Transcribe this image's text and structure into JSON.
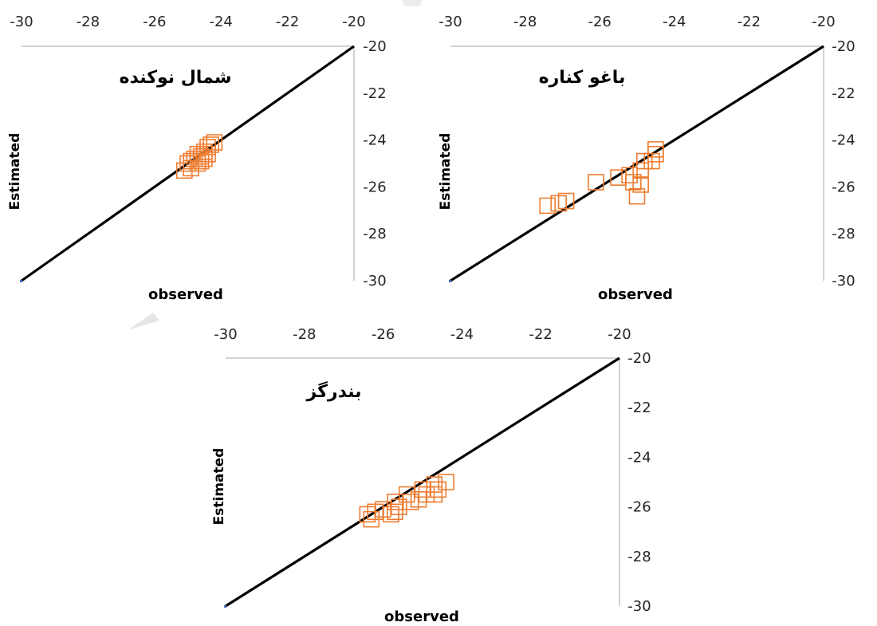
{
  "chart_data": [
    {
      "type": "scatter",
      "title": "شمال نوکنده",
      "xlabel": "observed",
      "ylabel": "Estimated",
      "xlim": [
        -30,
        -20
      ],
      "ylim": [
        -30,
        -20
      ],
      "x_ticks": [
        "-30",
        "-28",
        "-26",
        "-24",
        "-22",
        "-20"
      ],
      "y_ticks": [
        "-20",
        "-22",
        "-24",
        "-26",
        "-28",
        "-30"
      ],
      "x_axis_position": "top",
      "y_axis_position": "right",
      "x_reversed": false,
      "y_reversed": true,
      "grid": false,
      "marker": "hollow-square",
      "marker_color": "#ED7D31",
      "line_color": "#000000",
      "reference_line": [
        [
          -30,
          -30
        ],
        [
          -20,
          -20
        ]
      ],
      "points": [
        [
          -25.1,
          -25.3
        ],
        [
          -24.9,
          -25.2
        ],
        [
          -24.7,
          -25.0
        ],
        [
          -24.8,
          -24.8
        ],
        [
          -24.6,
          -24.7
        ],
        [
          -24.5,
          -24.5
        ],
        [
          -24.4,
          -24.3
        ],
        [
          -24.3,
          -24.2
        ],
        [
          -24.6,
          -24.9
        ],
        [
          -24.9,
          -24.9
        ],
        [
          -25.0,
          -25.0
        ],
        [
          -24.5,
          -24.8
        ],
        [
          -24.4,
          -24.6
        ],
        [
          -24.7,
          -24.6
        ],
        [
          -24.2,
          -24.1
        ]
      ]
    },
    {
      "type": "scatter",
      "title": "باغو کناره",
      "xlabel": "observed",
      "ylabel": "Estimated",
      "xlim": [
        -30,
        -20
      ],
      "ylim": [
        -30,
        -20
      ],
      "x_ticks": [
        "-30",
        "-28",
        "-26",
        "-24",
        "-22",
        "-20"
      ],
      "y_ticks": [
        "-20",
        "-22",
        "-24",
        "-26",
        "-28",
        "-30"
      ],
      "x_axis_position": "top",
      "y_axis_position": "right",
      "x_reversed": false,
      "y_reversed": true,
      "grid": false,
      "marker": "hollow-square",
      "marker_color": "#ED7D31",
      "line_color": "#000000",
      "reference_line": [
        [
          -30,
          -30
        ],
        [
          -20,
          -20
        ]
      ],
      "points": [
        [
          -27.4,
          -26.8
        ],
        [
          -27.1,
          -26.7
        ],
        [
          -26.9,
          -26.6
        ],
        [
          -26.1,
          -25.8
        ],
        [
          -25.5,
          -25.6
        ],
        [
          -25.2,
          -25.5
        ],
        [
          -25.1,
          -25.8
        ],
        [
          -24.9,
          -25.9
        ],
        [
          -25.0,
          -26.4
        ],
        [
          -24.8,
          -24.9
        ],
        [
          -24.9,
          -25.3
        ],
        [
          -24.6,
          -24.9
        ],
        [
          -24.5,
          -24.6
        ],
        [
          -24.5,
          -24.4
        ]
      ]
    },
    {
      "type": "scatter",
      "title": "بندرگز",
      "xlabel": "observed",
      "ylabel": "Estimated",
      "xlim": [
        -30,
        -20
      ],
      "ylim": [
        -30,
        -20
      ],
      "x_ticks": [
        "-30",
        "-28",
        "-26",
        "-24",
        "-22",
        "-20"
      ],
      "y_ticks": [
        "-20",
        "-22",
        "-24",
        "-26",
        "-28",
        "-30"
      ],
      "x_axis_position": "top",
      "y_axis_position": "right",
      "x_reversed": false,
      "y_reversed": true,
      "grid": false,
      "marker": "hollow-square",
      "marker_color": "#ED7D31",
      "line_color": "#000000",
      "reference_line": [
        [
          -30,
          -30
        ],
        [
          -20,
          -20
        ]
      ],
      "points": [
        [
          -26.4,
          -26.3
        ],
        [
          -26.2,
          -26.2
        ],
        [
          -26.3,
          -26.5
        ],
        [
          -26.0,
          -26.1
        ],
        [
          -25.8,
          -26.3
        ],
        [
          -25.7,
          -26.2
        ],
        [
          -25.6,
          -26.0
        ],
        [
          -25.7,
          -25.8
        ],
        [
          -25.3,
          -25.8
        ],
        [
          -25.1,
          -25.7
        ],
        [
          -25.4,
          -25.5
        ],
        [
          -24.9,
          -25.5
        ],
        [
          -25.0,
          -25.3
        ],
        [
          -24.7,
          -25.5
        ],
        [
          -24.7,
          -25.1
        ],
        [
          -24.4,
          -25.0
        ],
        [
          -24.6,
          -25.3
        ]
      ]
    }
  ]
}
